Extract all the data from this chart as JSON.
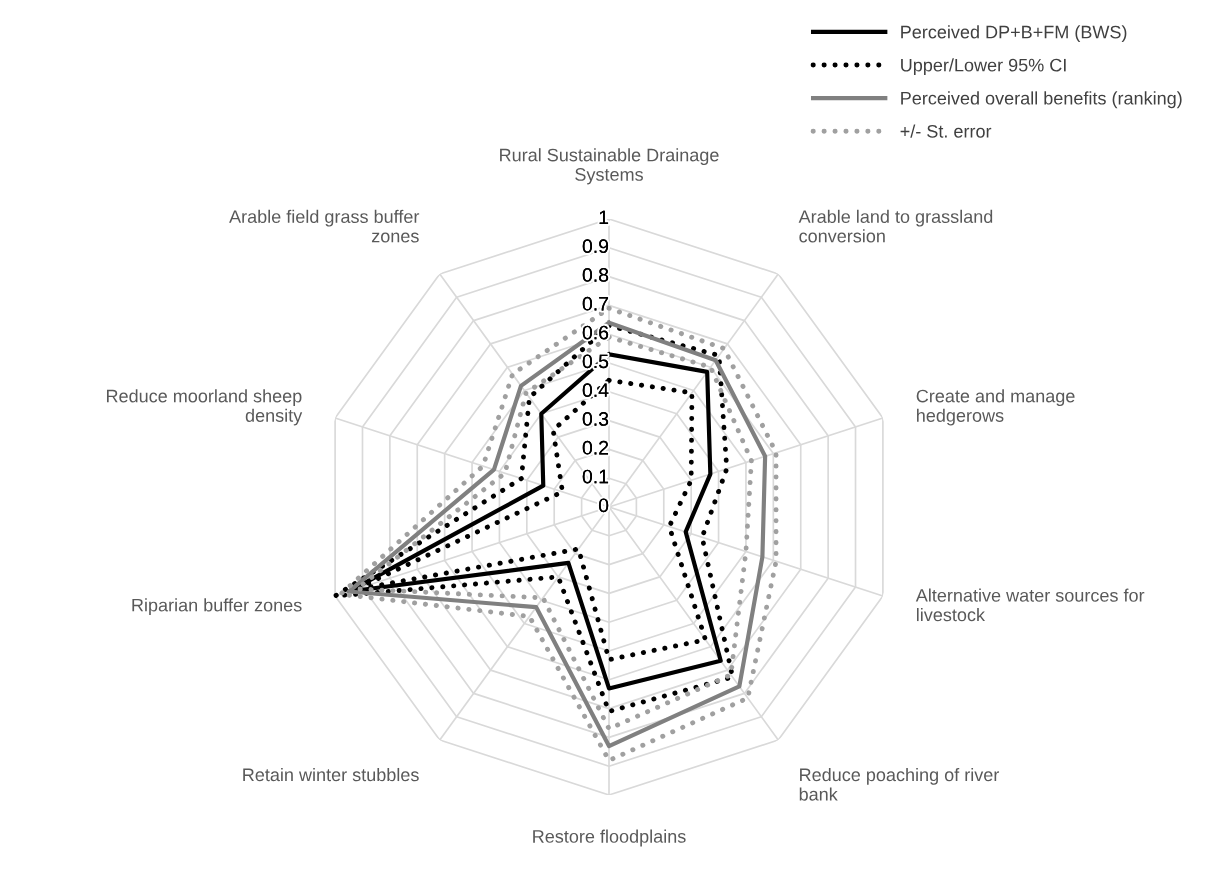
{
  "chart_data": {
    "type": "radar",
    "categories": [
      "Rural Sustainable Drainage\nSystems",
      "Arable land to grassland\nconversion",
      "Create and manage\nhedgerows",
      "Alternative water sources for\nlivestock",
      "Reduce poaching of river\nbank",
      "Restore floodplains",
      "Retain winter stubbles",
      "Riparian buffer zones",
      "Reduce moorland sheep\ndensity",
      "Arable field grass buffer\nzones"
    ],
    "series": [
      {
        "name": "Perceived DP+B+FM (BWS)",
        "color": "#000000",
        "line_style": "solid",
        "values": [
          0.53,
          0.58,
          0.37,
          0.28,
          0.66,
          0.63,
          0.24,
          0.95,
          0.24,
          0.4
        ]
      },
      {
        "name": "Upper/Lower 95% CI",
        "color": "#000000",
        "line_style": "dotted",
        "values": [
          0.63,
          0.65,
          0.43,
          0.34,
          0.73,
          0.71,
          0.3,
          1.0,
          0.32,
          0.47
        ]
      },
      {
        "color": "#000000",
        "line_style": "dotted",
        "values": [
          0.44,
          0.49,
          0.3,
          0.22,
          0.57,
          0.53,
          0.18,
          0.93,
          0.17,
          0.33
        ]
      },
      {
        "name": "Perceived overall benefits (ranking)",
        "color": "#808080",
        "line_style": "solid",
        "values": [
          0.64,
          0.63,
          0.57,
          0.56,
          0.77,
          0.83,
          0.43,
          0.95,
          0.42,
          0.52
        ]
      },
      {
        "name": "+/- St. error",
        "color": "#a0a0a0",
        "line_style": "dotted",
        "values": [
          0.69,
          0.68,
          0.61,
          0.61,
          0.82,
          0.88,
          0.47,
          0.98,
          0.46,
          0.57
        ]
      },
      {
        "color": "#a0a0a0",
        "line_style": "dotted",
        "values": [
          0.59,
          0.6,
          0.52,
          0.5,
          0.72,
          0.77,
          0.39,
          0.92,
          0.38,
          0.49
        ]
      }
    ],
    "ylim": [
      0,
      1
    ],
    "yticks": [
      0,
      0.1,
      0.2,
      0.3,
      0.4,
      0.5,
      0.6,
      0.7,
      0.8,
      0.9,
      1
    ],
    "grid": true,
    "legend": "top right"
  }
}
